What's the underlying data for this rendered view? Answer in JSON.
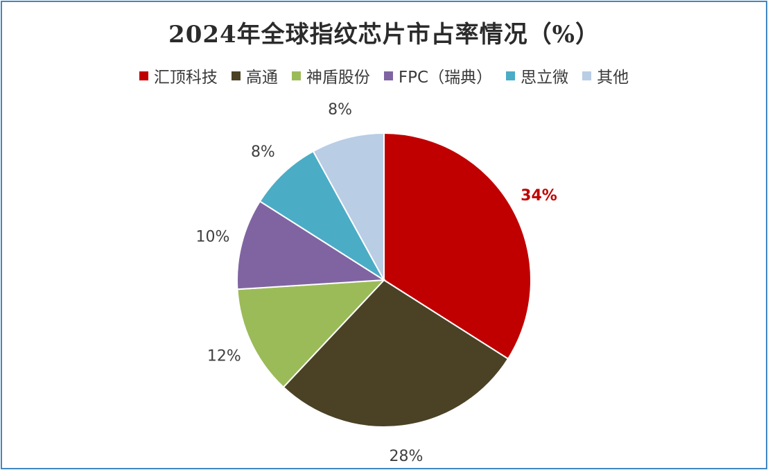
{
  "title": "2024年全球指纹芯片市占率情况（%）",
  "chart_data": {
    "type": "pie",
    "categories": [
      "汇顶科技",
      "高通",
      "神盾股份",
      "FPC（瑞典）",
      "思立微",
      "其他"
    ],
    "values": [
      34,
      28,
      12,
      10,
      8,
      8
    ],
    "labels": [
      "34%",
      "28%",
      "12%",
      "10%",
      "8%",
      "8%"
    ],
    "colors": [
      "#c00000",
      "#4b4226",
      "#9bbb59",
      "#8064a2",
      "#4bacc6",
      "#b9cde5"
    ],
    "label_colors": [
      "#c00000",
      "#404040",
      "#404040",
      "#404040",
      "#404040",
      "#404040"
    ],
    "label_bold": [
      true,
      false,
      false,
      false,
      false,
      false
    ],
    "legend_position": "top"
  }
}
